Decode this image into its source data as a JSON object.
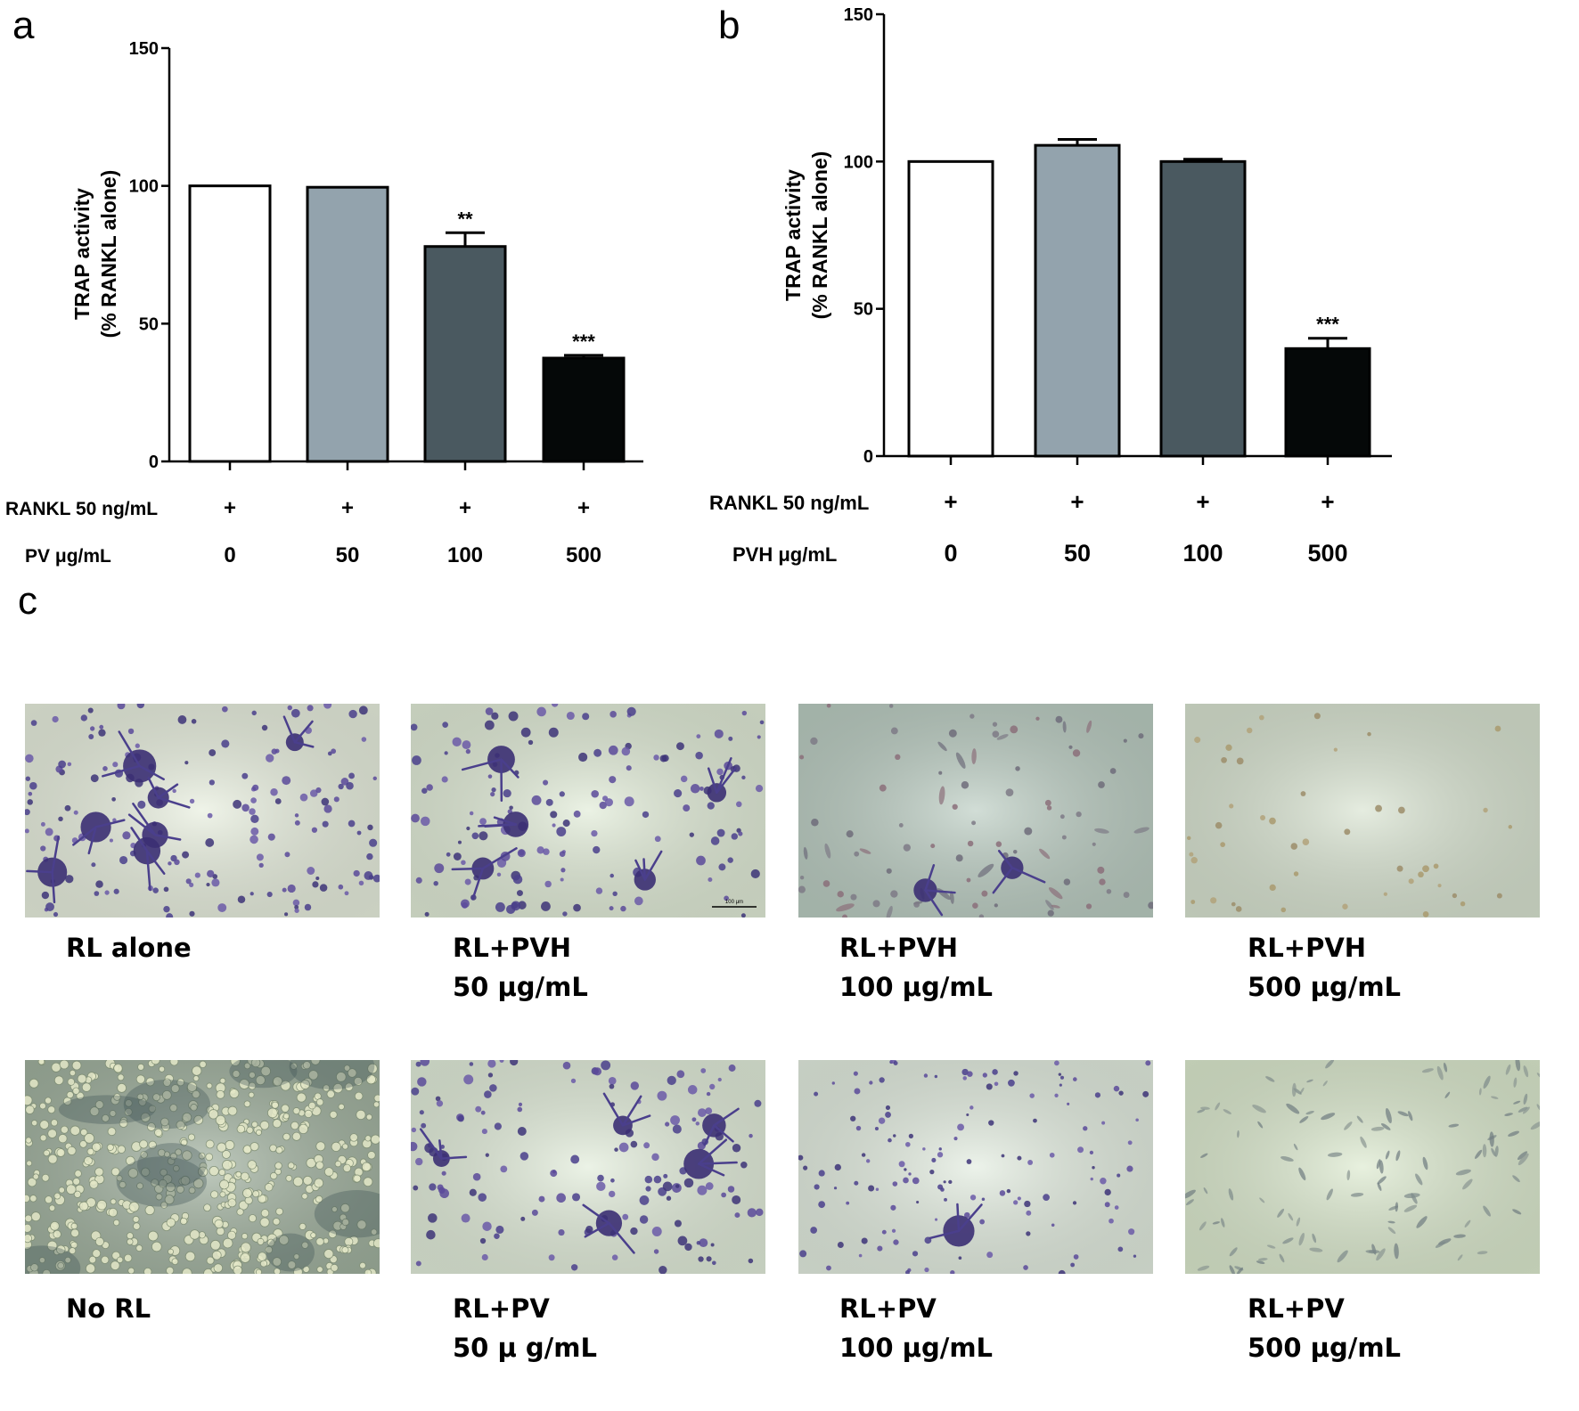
{
  "panels": {
    "a": "a",
    "b": "b",
    "c": "c"
  },
  "chart_data": [
    {
      "id": "a",
      "type": "bar",
      "categories": [
        "0",
        "50",
        "100",
        "500"
      ],
      "values": [
        100,
        99.5,
        78,
        37.5
      ],
      "error": [
        0,
        0,
        5,
        1
      ],
      "significance": [
        "",
        "",
        "**",
        "***"
      ],
      "ylabel_line1": "TRAP activity",
      "ylabel_line2": "(% RANKL alone)",
      "ylim": [
        0,
        150
      ],
      "yticks": [
        "0",
        "50",
        "100",
        "150"
      ],
      "row1_label": "RANKL 50 ng/mL",
      "row1_values": [
        "+",
        "+",
        "+",
        "+"
      ],
      "row2_label": "PV μg/mL",
      "colors": [
        "#ffffff",
        "#93a3ad",
        "#4a5960",
        "#050808"
      ]
    },
    {
      "id": "b",
      "type": "bar",
      "categories": [
        "0",
        "50",
        "100",
        "500"
      ],
      "values": [
        100,
        105.5,
        100,
        36.5
      ],
      "error": [
        0,
        2,
        0.8,
        3.5
      ],
      "significance": [
        "",
        "",
        "",
        "***"
      ],
      "ylabel_line1": "TRAP activity",
      "ylabel_line2": "(% RANKL alone)",
      "ylim": [
        0,
        150
      ],
      "yticks": [
        "0",
        "50",
        "100",
        "150"
      ],
      "row1_label": "RANKL 50 ng/mL",
      "row1_values": [
        "+",
        "+",
        "+",
        "+"
      ],
      "row2_label": "PVH μg/mL",
      "colors": [
        "#ffffff",
        "#93a3ad",
        "#4a5960",
        "#050808"
      ]
    }
  ],
  "micrographs": {
    "top": [
      {
        "caption": [
          "RL alone"
        ],
        "style": "dense-stained",
        "bg": "#e7eedd"
      },
      {
        "caption": [
          "RL+PVH",
          "50 μg/mL"
        ],
        "style": "stained",
        "bg": "#e0ebd6",
        "scale_bar": "100 μm"
      },
      {
        "caption": [
          "RL+PVH",
          "100 μg/mL"
        ],
        "style": "faint",
        "bg": "#b9cbc0"
      },
      {
        "caption": [
          "RL+PVH",
          "500 μg/mL"
        ],
        "style": "sparse",
        "bg": "#d7e2cf"
      }
    ],
    "bottom": [
      {
        "caption": [
          "No RL"
        ],
        "style": "confluent",
        "bg": "#9fb09d"
      },
      {
        "caption": [
          "RL+PV",
          "50 μ g/mL"
        ],
        "style": "stained",
        "bg": "#e1ecd9"
      },
      {
        "caption": [
          "RL+PV",
          "100 μg/mL"
        ],
        "style": "small-stained",
        "bg": "#e2ecdf"
      },
      {
        "caption": [
          "RL+PV",
          "500 μg/mL"
        ],
        "style": "faint-spindles",
        "bg": "#dbe9cd"
      }
    ]
  }
}
